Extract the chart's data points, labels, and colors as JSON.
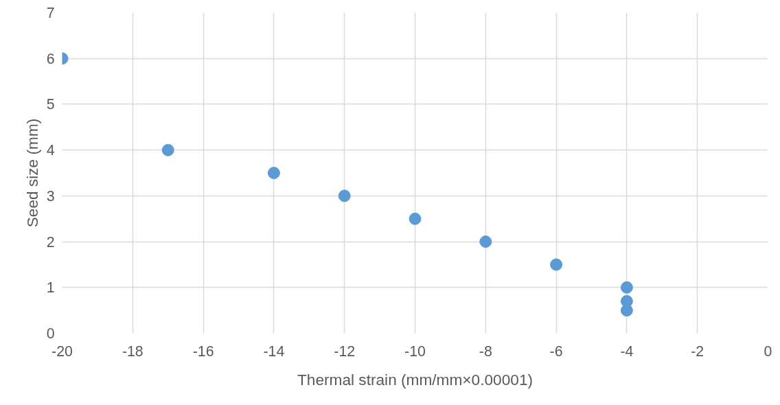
{
  "chart_data": {
    "type": "scatter",
    "xlabel": "Thermal strain (mm/mm×0.00001)",
    "ylabel": "Seed size (mm)",
    "x": [
      -20,
      -17,
      -14,
      -12,
      -10,
      -8,
      -6,
      -4,
      -4,
      -4
    ],
    "series": [
      {
        "color": "#5b9bd5",
        "values": [
          6,
          4,
          3.5,
          3,
          2.5,
          2,
          1.5,
          1,
          0.7,
          0.5
        ]
      }
    ],
    "xlim": [
      -20,
      0
    ],
    "xticks": [
      -20,
      -18,
      -16,
      -14,
      -12,
      -10,
      -8,
      -6,
      -4,
      -2,
      0
    ],
    "ylim": [
      0,
      7
    ],
    "yticks": [
      0,
      1,
      2,
      3,
      4,
      5,
      6,
      7
    ],
    "grid": true,
    "marker": "circle"
  }
}
